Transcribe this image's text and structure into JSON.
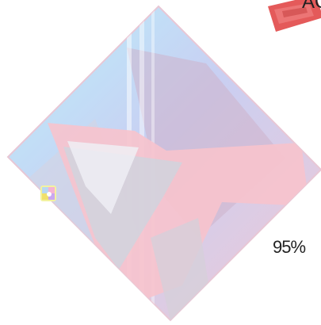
{
  "header": {
    "label": "AC"
  },
  "status": {
    "progress_text": "95%",
    "progress_value": 0.95
  },
  "icons": {
    "art": "diamond-art",
    "badge": "corner-badge-icon",
    "mini": "palette-icon"
  },
  "colors": {
    "cyan": "#bff0fb",
    "lavender": "#c9cdf3",
    "pink": "#f4c6d2",
    "red": "#e35b5b",
    "text": "#222222"
  }
}
